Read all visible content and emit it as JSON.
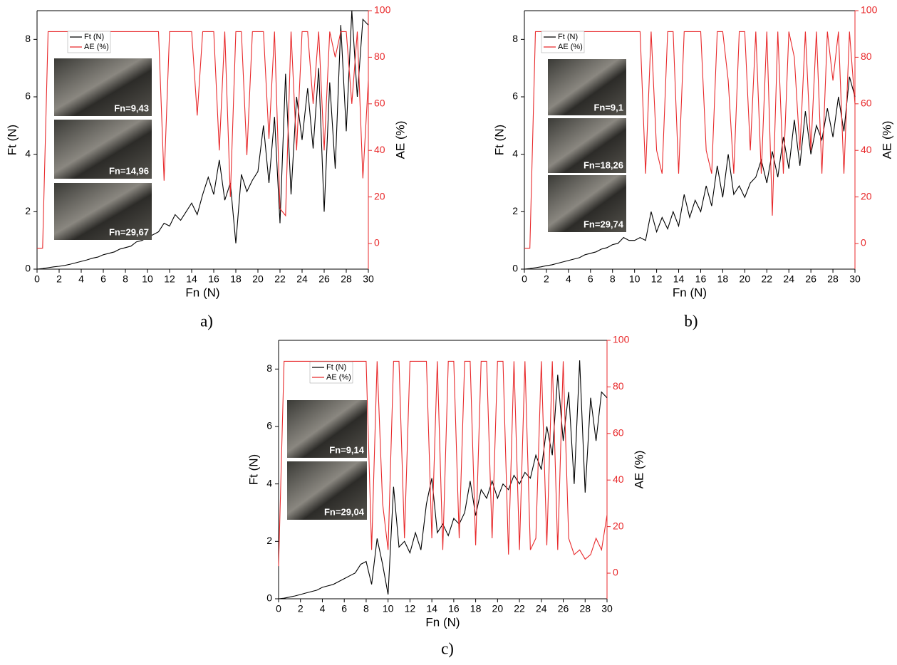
{
  "chart_data": [
    {
      "type": "line",
      "caption": "a)",
      "xlabel": "Fn (N)",
      "ylabel": "Ft (N)",
      "y2label": "AE (%)",
      "annotations": [
        "Fn=9,43",
        "Fn=14,96",
        "Fn=29,67"
      ],
      "xlim": [
        0,
        30
      ],
      "xticks": [
        0,
        2,
        4,
        6,
        8,
        10,
        12,
        14,
        16,
        18,
        20,
        22,
        24,
        26,
        28,
        30
      ],
      "ylim": [
        0,
        9
      ],
      "yticks": [
        0,
        2,
        4,
        6,
        8
      ],
      "y2lim": [
        -11,
        100
      ],
      "y2ticks": [
        0,
        20,
        40,
        60,
        80,
        100
      ],
      "x": [
        0,
        0.5,
        1,
        1.5,
        2,
        2.5,
        3,
        3.5,
        4,
        4.5,
        5,
        5.5,
        6,
        6.5,
        7,
        7.5,
        8,
        8.5,
        9,
        9.5,
        10,
        10.5,
        11,
        11.5,
        12,
        12.5,
        13,
        13.5,
        14,
        14.5,
        15,
        15.5,
        16,
        16.5,
        17,
        17.5,
        18,
        18.5,
        19,
        19.5,
        20,
        20.5,
        21,
        21.5,
        22,
        22.5,
        23,
        23.5,
        24,
        24.5,
        25,
        25.5,
        26,
        26.5,
        27,
        27.5,
        28,
        28.5,
        29,
        29.5,
        30
      ],
      "series": [
        {
          "name": "Ft (N)",
          "color": "#000000",
          "values": [
            0,
            0.02,
            0.05,
            0.08,
            0.1,
            0.13,
            0.17,
            0.22,
            0.27,
            0.32,
            0.38,
            0.42,
            0.5,
            0.55,
            0.6,
            0.7,
            0.75,
            0.8,
            0.95,
            1.0,
            1.1,
            1.2,
            1.3,
            1.6,
            1.5,
            1.9,
            1.7,
            2.0,
            2.3,
            1.9,
            2.6,
            3.2,
            2.6,
            3.8,
            2.4,
            3.0,
            0.9,
            3.3,
            2.7,
            3.1,
            3.4,
            5.0,
            3.0,
            5.3,
            1.6,
            6.8,
            2.6,
            6.0,
            4.5,
            6.3,
            4.2,
            7.0,
            2.0,
            6.5,
            3.5,
            8.5,
            4.8,
            9.0,
            6.0,
            8.7,
            8.5
          ]
        },
        {
          "name": "AE (%)",
          "color": "#e8292b",
          "axis": "y2",
          "values": [
            -2,
            -2,
            91,
            91,
            91,
            91,
            91,
            91,
            91,
            91,
            91,
            91,
            91,
            91,
            91,
            91,
            91,
            91,
            91,
            91,
            91,
            91,
            91,
            27,
            91,
            91,
            91,
            91,
            91,
            55,
            91,
            91,
            91,
            40,
            91,
            20,
            91,
            91,
            38,
            91,
            91,
            91,
            45,
            91,
            15,
            12,
            91,
            40,
            91,
            91,
            60,
            91,
            40,
            91,
            80,
            91,
            91,
            60,
            91,
            28,
            70
          ]
        }
      ]
    },
    {
      "type": "line",
      "caption": "b)",
      "xlabel": "Fn (N)",
      "ylabel": "Ft (N)",
      "y2label": "AE (%)",
      "annotations": [
        "Fn=9,1",
        "Fn=18,26",
        "Fn=29,74"
      ],
      "xlim": [
        0,
        30
      ],
      "xticks": [
        0,
        2,
        4,
        6,
        8,
        10,
        12,
        14,
        16,
        18,
        20,
        22,
        24,
        26,
        28,
        30
      ],
      "ylim": [
        0,
        9
      ],
      "yticks": [
        0,
        2,
        4,
        6,
        8
      ],
      "y2lim": [
        -11,
        100
      ],
      "y2ticks": [
        0,
        20,
        40,
        60,
        80,
        100
      ],
      "x": [
        0,
        0.5,
        1,
        1.5,
        2,
        2.5,
        3,
        3.5,
        4,
        4.5,
        5,
        5.5,
        6,
        6.5,
        7,
        7.5,
        8,
        8.5,
        9,
        9.5,
        10,
        10.5,
        11,
        11.5,
        12,
        12.5,
        13,
        13.5,
        14,
        14.5,
        15,
        15.5,
        16,
        16.5,
        17,
        17.5,
        18,
        18.5,
        19,
        19.5,
        20,
        20.5,
        21,
        21.5,
        22,
        22.5,
        23,
        23.5,
        24,
        24.5,
        25,
        25.5,
        26,
        26.5,
        27,
        27.5,
        28,
        28.5,
        29,
        29.5,
        30
      ],
      "series": [
        {
          "name": "Ft (N)",
          "color": "#000000",
          "values": [
            0,
            0.02,
            0.05,
            0.08,
            0.12,
            0.15,
            0.2,
            0.25,
            0.3,
            0.35,
            0.4,
            0.5,
            0.55,
            0.6,
            0.7,
            0.75,
            0.85,
            0.9,
            1.1,
            1.0,
            1.0,
            1.1,
            1.0,
            2.0,
            1.3,
            1.8,
            1.4,
            2.0,
            1.5,
            2.6,
            1.8,
            2.4,
            2.0,
            2.9,
            2.2,
            3.6,
            2.5,
            4.0,
            2.6,
            2.9,
            2.5,
            3.0,
            3.2,
            3.8,
            3.0,
            4.1,
            3.2,
            4.6,
            3.5,
            5.2,
            3.6,
            5.5,
            4.0,
            5.0,
            4.5,
            5.6,
            4.6,
            6.0,
            4.8,
            6.7,
            6.0
          ]
        },
        {
          "name": "AE (%)",
          "color": "#e8292b",
          "axis": "y2",
          "values": [
            -2,
            -2,
            91,
            91,
            91,
            91,
            91,
            91,
            91,
            91,
            91,
            91,
            91,
            91,
            91,
            91,
            91,
            91,
            91,
            91,
            91,
            91,
            30,
            91,
            40,
            30,
            91,
            91,
            30,
            91,
            91,
            91,
            91,
            40,
            30,
            91,
            91,
            70,
            30,
            91,
            91,
            40,
            91,
            30,
            91,
            12,
            91,
            30,
            91,
            80,
            40,
            91,
            40,
            91,
            30,
            91,
            70,
            91,
            30,
            91,
            60
          ]
        }
      ]
    },
    {
      "type": "line",
      "caption": "c)",
      "xlabel": "Fn (N)",
      "ylabel": "Ft (N)",
      "y2label": "AE (%)",
      "annotations": [
        "Fn=9,14",
        "Fn=29,04"
      ],
      "xlim": [
        0,
        30
      ],
      "xticks": [
        0,
        2,
        4,
        6,
        8,
        10,
        12,
        14,
        16,
        18,
        20,
        22,
        24,
        26,
        28,
        30
      ],
      "ylim": [
        0,
        9
      ],
      "yticks": [
        0,
        2,
        4,
        6,
        8
      ],
      "y2lim": [
        -11,
        100
      ],
      "y2ticks": [
        0,
        20,
        40,
        60,
        80,
        100
      ],
      "x": [
        0,
        0.5,
        1,
        1.5,
        2,
        2.5,
        3,
        3.5,
        4,
        4.5,
        5,
        5.5,
        6,
        6.5,
        7,
        7.5,
        8,
        8.5,
        9,
        9.5,
        10,
        10.5,
        11,
        11.5,
        12,
        12.5,
        13,
        13.5,
        14,
        14.5,
        15,
        15.5,
        16,
        16.5,
        17,
        17.5,
        18,
        18.5,
        19,
        19.5,
        20,
        20.5,
        21,
        21.5,
        22,
        22.5,
        23,
        23.5,
        24,
        24.5,
        25,
        25.5,
        26,
        26.5,
        27,
        27.5,
        28,
        28.5,
        29,
        29.5,
        30
      ],
      "series": [
        {
          "name": "Ft (N)",
          "color": "#000000",
          "values": [
            0,
            0.02,
            0.06,
            0.1,
            0.15,
            0.2,
            0.25,
            0.3,
            0.4,
            0.45,
            0.5,
            0.6,
            0.7,
            0.8,
            0.9,
            1.2,
            1.3,
            0.5,
            2.1,
            1.2,
            0.15,
            3.9,
            1.8,
            2.0,
            1.6,
            2.3,
            1.7,
            3.3,
            4.2,
            2.3,
            2.6,
            2.2,
            2.8,
            2.6,
            3.0,
            4.1,
            2.9,
            3.8,
            3.5,
            4.1,
            3.5,
            4.0,
            3.8,
            4.3,
            4.0,
            4.4,
            4.2,
            5.0,
            4.5,
            6.0,
            5.0,
            7.8,
            5.5,
            7.2,
            4.0,
            8.3,
            3.7,
            7.0,
            5.5,
            7.2,
            7.0
          ]
        },
        {
          "name": "AE (%)",
          "color": "#e8292b",
          "axis": "y2",
          "values": [
            3,
            91,
            91,
            91,
            91,
            91,
            91,
            91,
            91,
            91,
            91,
            91,
            91,
            91,
            91,
            91,
            91,
            10,
            91,
            30,
            10,
            91,
            91,
            15,
            91,
            91,
            91,
            91,
            15,
            91,
            10,
            91,
            91,
            15,
            91,
            91,
            12,
            91,
            91,
            15,
            91,
            91,
            8,
            91,
            10,
            91,
            10,
            15,
            91,
            12,
            91,
            10,
            91,
            15,
            8,
            10,
            6,
            8,
            15,
            10,
            25
          ]
        }
      ]
    }
  ]
}
